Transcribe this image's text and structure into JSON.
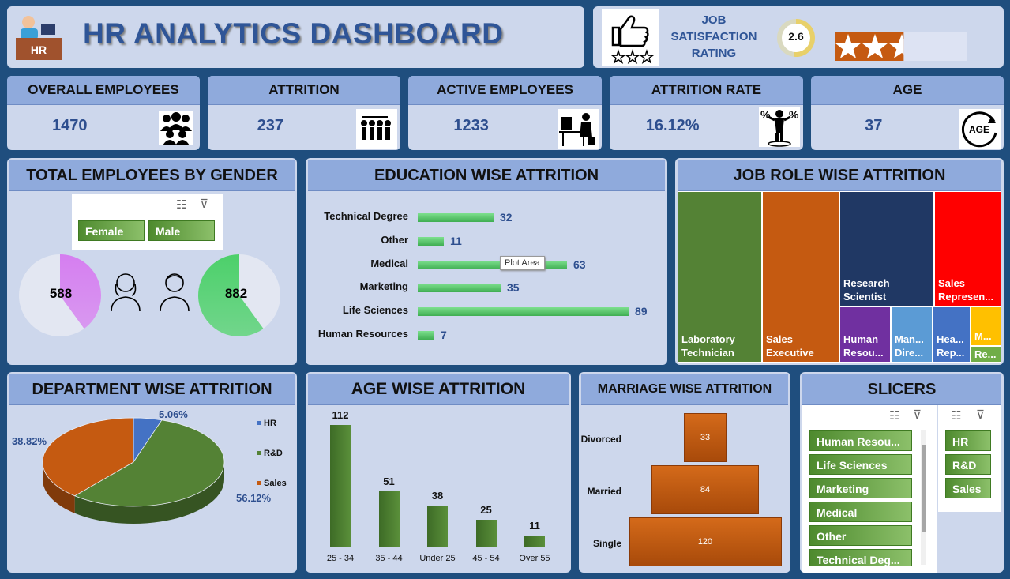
{
  "header": {
    "title": "HR ANALYTICS DASHBOARD",
    "icon_label": "HR"
  },
  "satisfaction": {
    "label_line1": "JOB",
    "label_line2": "SATISFACTION",
    "label_line3": "RATING",
    "value": "2.6",
    "value_fraction": 0.52,
    "stars_filled": 2.6,
    "stars_total": 5,
    "accent": "#c55a11"
  },
  "kpis": [
    {
      "title": "OVERALL EMPLOYEES",
      "value": "1470",
      "icon": "people-group-icon"
    },
    {
      "title": "ATTRITION",
      "value": "237",
      "icon": "people-leaving-icon"
    },
    {
      "title": "ACTIVE EMPLOYEES",
      "value": "1233",
      "icon": "employee-working-icon"
    },
    {
      "title": "ATTRITION RATE",
      "value": "16.12%",
      "icon": "percent-person-icon"
    },
    {
      "title": "AGE",
      "value": "37",
      "icon": "age-cycle-icon",
      "icon_text": "AGE"
    }
  ],
  "gender": {
    "title": "TOTAL EMPLOYEES BY GENDER",
    "slicer": [
      "Female",
      "Male"
    ],
    "female": {
      "value": "588",
      "fraction": 0.4,
      "color": "#d57ef0"
    },
    "male": {
      "value": "882",
      "fraction": 0.6,
      "color": "#4cd06a"
    }
  },
  "education": {
    "title": "EDUCATION WISE ATTRITION",
    "tooltip": "Plot Area",
    "chart_data": {
      "type": "bar",
      "categories": [
        "Technical Degree",
        "Other",
        "Medical",
        "Marketing",
        "Life Sciences",
        "Human Resources"
      ],
      "values": [
        32,
        11,
        63,
        35,
        89,
        7
      ]
    }
  },
  "jobrole": {
    "title": "JOB ROLE WISE ATTRITION",
    "items": [
      {
        "label": "Laboratory Technician",
        "color": "#548235"
      },
      {
        "label": "Sales Executive",
        "color": "#c55a11"
      },
      {
        "label": "Research Scientist",
        "color": "#203864"
      },
      {
        "label": "Sales Represen...",
        "color": "#ff0000"
      },
      {
        "label": "Human Resou...",
        "color": "#7030a0"
      },
      {
        "label": "Man... Dire...",
        "color": "#5b9bd5"
      },
      {
        "label": "Hea... Rep...",
        "color": "#4472c4"
      },
      {
        "label": "M...",
        "color": "#ffc000"
      },
      {
        "label": "Re...",
        "color": "#70ad47"
      }
    ]
  },
  "department": {
    "title": "DEPARTMENT WISE ATTRITION",
    "chart_data": {
      "type": "pie",
      "categories": [
        "HR",
        "R&D",
        "Sales"
      ],
      "values": [
        5.06,
        56.12,
        38.82
      ],
      "labels": [
        "5.06%",
        "56.12%",
        "38.82%"
      ],
      "colors": [
        "#4472c4",
        "#548235",
        "#c55a11"
      ]
    }
  },
  "age": {
    "title": "AGE WISE ATTRITION",
    "chart_data": {
      "type": "bar",
      "categories": [
        "25 - 34",
        "35 - 44",
        "Under 25",
        "45 - 54",
        "Over 55"
      ],
      "values": [
        112,
        51,
        38,
        25,
        11
      ]
    }
  },
  "marriage": {
    "title": "MARRIAGE WISE ATTRITION",
    "chart_data": {
      "type": "bar",
      "categories": [
        "Divorced",
        "Married",
        "Single"
      ],
      "values": [
        33,
        84,
        120
      ]
    }
  },
  "slicers": {
    "title": "SLICERS",
    "education": [
      "Human Resou...",
      "Life Sciences",
      "Marketing",
      "Medical",
      "Other",
      "Technical Deg..."
    ],
    "department": [
      "HR",
      "R&D",
      "Sales"
    ]
  }
}
